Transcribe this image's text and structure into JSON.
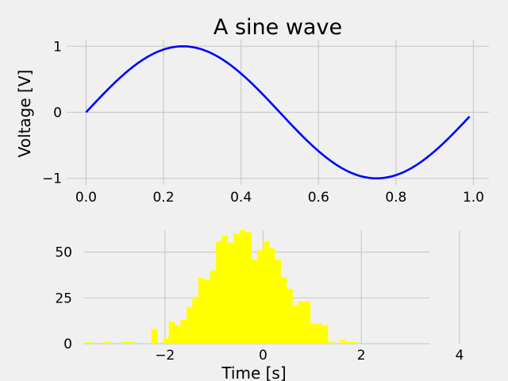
{
  "chart_data": [
    {
      "type": "line",
      "title": "A sine wave",
      "xlabel": "",
      "ylabel": "Voltage [V]",
      "xlim": [
        -0.05,
        1.04
      ],
      "ylim": [
        -1.1,
        1.1
      ],
      "xticks": [
        0.0,
        0.2,
        0.4,
        0.6,
        0.8,
        1.0
      ],
      "xtick_labels": [
        "0.0",
        "0.2",
        "0.4",
        "0.6",
        "0.8",
        "1.0"
      ],
      "yticks": [
        -1,
        0,
        1
      ],
      "ytick_labels": [
        "−1",
        "0",
        "1"
      ],
      "grid": true,
      "series": [
        {
          "function": "sin(2*pi*t)",
          "x_start": 0.0,
          "x_end": 0.99,
          "x_step": 0.01,
          "color": "#0000ff"
        }
      ]
    },
    {
      "type": "bar",
      "subtype": "histogram",
      "title": "",
      "xlabel": "Time [s]",
      "ylabel": "",
      "xlim": [
        -4.0,
        4.6
      ],
      "ylim": [
        0,
        65
      ],
      "xticks": [
        -2,
        0,
        2,
        4
      ],
      "xtick_labels": [
        "−2",
        "0",
        "2",
        "4"
      ],
      "yticks": [
        0,
        25,
        50
      ],
      "ytick_labels": [
        "0",
        "25",
        "50"
      ],
      "grid": true,
      "color": "#ffff00",
      "bin_start": -3.6,
      "bin_width": 0.12,
      "counts": [
        1,
        0,
        0,
        1,
        0,
        0,
        1,
        1,
        0,
        0,
        0,
        8,
        0,
        3,
        12,
        10,
        13,
        20,
        25,
        36,
        35,
        40,
        56,
        59,
        55,
        60,
        62,
        61,
        46,
        51,
        56,
        52,
        46,
        36,
        30,
        21,
        23,
        23,
        11,
        11,
        10,
        1,
        0,
        2,
        1,
        1
      ]
    }
  ]
}
